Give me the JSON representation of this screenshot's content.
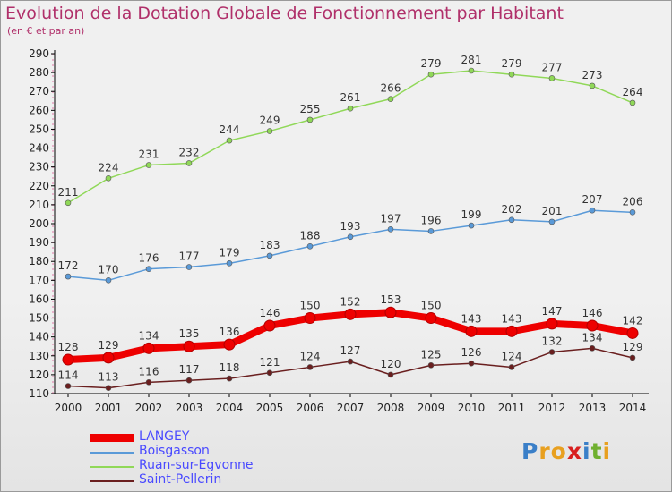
{
  "header": {
    "title": "Evolution de la Dotation Globale de Fonctionnement par Habitant",
    "subtitle": "(en € et par an)"
  },
  "brand": {
    "letters": [
      "P",
      "r",
      "o",
      "x",
      "i",
      "t",
      "i"
    ],
    "colors": [
      "#3a7fc8",
      "#e8a020",
      "#e8a020",
      "#d82020",
      "#3a7fc8",
      "#70b030",
      "#e8a020"
    ]
  },
  "chart_data": {
    "type": "line",
    "title": "Evolution de la Dotation Globale de Fonctionnement par Habitant",
    "subtitle": "(en € et par an)",
    "xlabel": "",
    "ylabel": "",
    "ylim": [
      110,
      290
    ],
    "yticks": [
      110,
      120,
      130,
      140,
      150,
      160,
      170,
      180,
      190,
      200,
      210,
      220,
      230,
      240,
      250,
      260,
      270,
      280,
      290
    ],
    "x": [
      "2000",
      "2001",
      "2002",
      "2003",
      "2004",
      "2005",
      "2006",
      "2007",
      "2008",
      "2009",
      "2010",
      "2011",
      "2012",
      "2013",
      "2014"
    ],
    "grid": false,
    "legend_position": "bottom-left",
    "series": [
      {
        "name": "LANGEY",
        "color": "#ee0000",
        "values": [
          128,
          129,
          134,
          135,
          136,
          146,
          150,
          152,
          153,
          150,
          143,
          143,
          147,
          146,
          142
        ]
      },
      {
        "name": "Boisgasson",
        "color": "#5a9ad8",
        "values": [
          172,
          170,
          176,
          177,
          179,
          183,
          188,
          193,
          197,
          196,
          199,
          202,
          201,
          207,
          206
        ]
      },
      {
        "name": "Ruan-sur-Egvonne",
        "color": "#90d858",
        "values": [
          211,
          224,
          231,
          232,
          244,
          249,
          255,
          261,
          266,
          279,
          281,
          279,
          277,
          273,
          264
        ]
      },
      {
        "name": "Saint-Pellerin",
        "color": "#6a1f1f",
        "values": [
          114,
          113,
          116,
          117,
          118,
          121,
          124,
          127,
          120,
          125,
          126,
          124,
          132,
          134,
          129
        ]
      }
    ]
  }
}
